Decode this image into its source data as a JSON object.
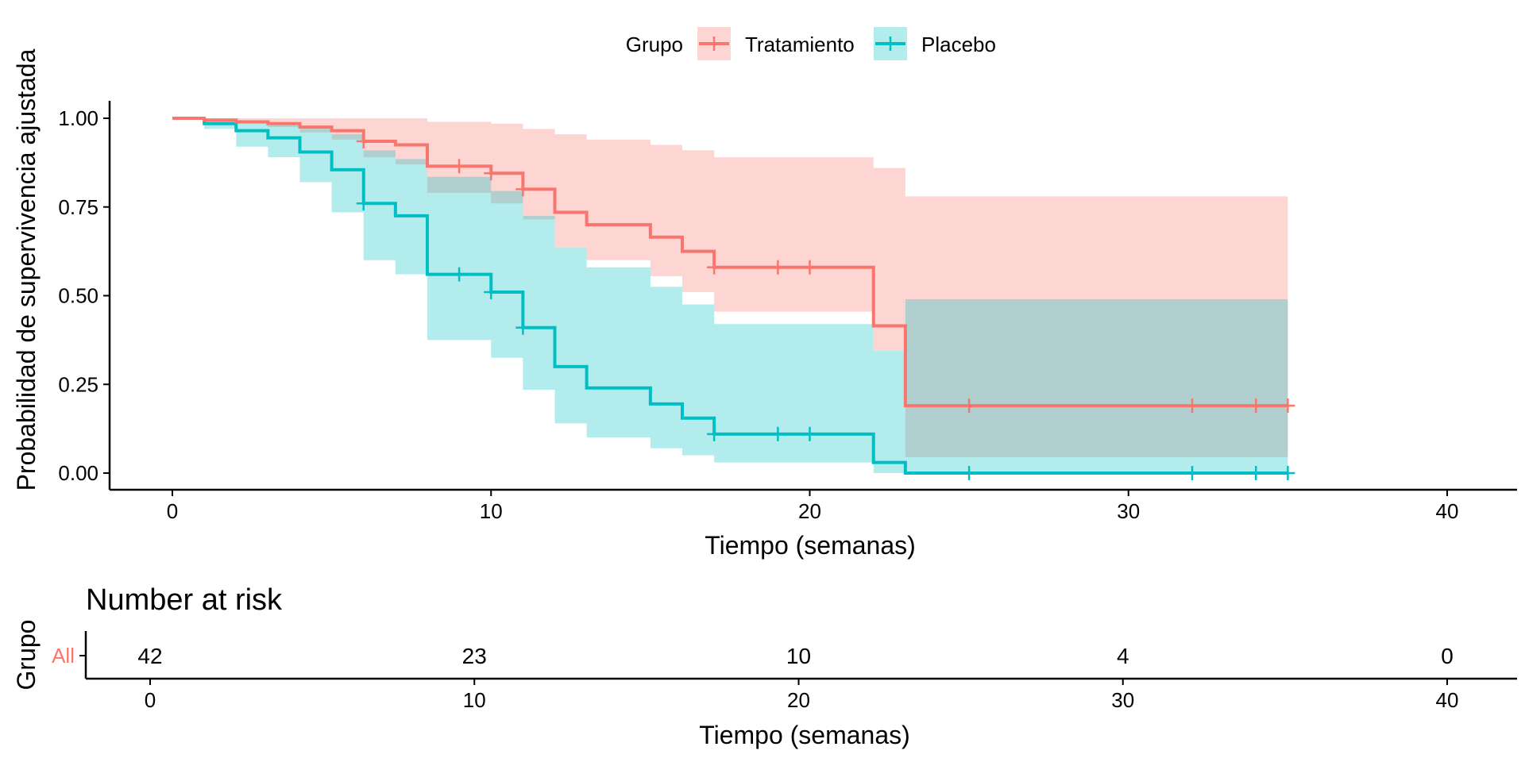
{
  "colors": {
    "treatment": "#F8766D",
    "placebo": "#00BFC4",
    "treatment_band": "#F8766D",
    "placebo_band": "#00BFC4",
    "axis": "#000000"
  },
  "legend": {
    "title": "Grupo",
    "items": [
      "Tratamiento",
      "Placebo"
    ]
  },
  "chart_data": [
    {
      "type": "line",
      "subtype": "kaplan-meier-step",
      "ylabel": "Probabilidad de supervivencia ajustada",
      "xlabel": "Tiempo (semanas)",
      "xlim": [
        -2,
        42
      ],
      "ylim": [
        -0.05,
        1.05
      ],
      "xticks": [
        0,
        10,
        20,
        30,
        40
      ],
      "yticks": [
        0.0,
        0.25,
        0.5,
        0.75,
        1.0
      ],
      "ytick_labels": [
        "0.00",
        "0.25",
        "0.50",
        "0.75",
        "1.00"
      ],
      "legend_position": "top",
      "series": [
        {
          "name": "Tratamiento",
          "color": "#F8766D",
          "steps": [
            [
              0,
              1.0
            ],
            [
              1,
              0.995
            ],
            [
              2,
              0.99
            ],
            [
              3,
              0.985
            ],
            [
              4,
              0.975
            ],
            [
              5,
              0.965
            ],
            [
              6,
              0.935
            ],
            [
              7,
              0.925
            ],
            [
              8,
              0.865
            ],
            [
              10,
              0.845
            ],
            [
              11,
              0.8
            ],
            [
              12,
              0.735
            ],
            [
              13,
              0.7
            ],
            [
              15,
              0.665
            ],
            [
              16,
              0.625
            ],
            [
              17,
              0.58
            ],
            [
              22,
              0.415
            ],
            [
              23,
              0.19
            ],
            [
              35,
              0.19
            ]
          ],
          "upper": [
            [
              1,
              1.0
            ],
            [
              6,
              1.0
            ],
            [
              8,
              0.99
            ],
            [
              10,
              0.985
            ],
            [
              11,
              0.97
            ],
            [
              12,
              0.955
            ],
            [
              13,
              0.94
            ],
            [
              15,
              0.925
            ],
            [
              16,
              0.91
            ],
            [
              17,
              0.89
            ],
            [
              22,
              0.86
            ],
            [
              23,
              0.78
            ],
            [
              35,
              0.78
            ]
          ],
          "lower": [
            [
              1,
              0.99
            ],
            [
              2,
              0.985
            ],
            [
              3,
              0.975
            ],
            [
              4,
              0.96
            ],
            [
              5,
              0.94
            ],
            [
              6,
              0.89
            ],
            [
              7,
              0.87
            ],
            [
              8,
              0.79
            ],
            [
              10,
              0.76
            ],
            [
              11,
              0.715
            ],
            [
              12,
              0.635
            ],
            [
              13,
              0.6
            ],
            [
              15,
              0.555
            ],
            [
              16,
              0.51
            ],
            [
              17,
              0.455
            ],
            [
              22,
              0.345
            ],
            [
              23,
              0.045
            ],
            [
              35,
              0.045
            ]
          ],
          "censor_x": [
            6,
            9,
            10,
            11,
            17,
            19,
            20,
            25,
            32,
            34,
            35
          ]
        },
        {
          "name": "Placebo",
          "color": "#00BFC4",
          "steps": [
            [
              0,
              1.0
            ],
            [
              1,
              0.985
            ],
            [
              2,
              0.965
            ],
            [
              3,
              0.945
            ],
            [
              4,
              0.905
            ],
            [
              5,
              0.855
            ],
            [
              6,
              0.76
            ],
            [
              7,
              0.725
            ],
            [
              8,
              0.56
            ],
            [
              10,
              0.51
            ],
            [
              11,
              0.41
            ],
            [
              12,
              0.3
            ],
            [
              13,
              0.24
            ],
            [
              15,
              0.195
            ],
            [
              16,
              0.155
            ],
            [
              17,
              0.11
            ],
            [
              22,
              0.03
            ],
            [
              23,
              0.0
            ],
            [
              35,
              0.0
            ]
          ],
          "upper": [
            [
              1,
              0.995
            ],
            [
              2,
              0.99
            ],
            [
              3,
              0.98
            ],
            [
              4,
              0.97
            ],
            [
              5,
              0.955
            ],
            [
              6,
              0.91
            ],
            [
              7,
              0.885
            ],
            [
              8,
              0.835
            ],
            [
              10,
              0.795
            ],
            [
              11,
              0.725
            ],
            [
              12,
              0.635
            ],
            [
              13,
              0.58
            ],
            [
              15,
              0.525
            ],
            [
              16,
              0.475
            ],
            [
              17,
              0.42
            ],
            [
              22,
              0.345
            ],
            [
              23,
              0.49
            ],
            [
              35,
              0.49
            ]
          ],
          "lower": [
            [
              1,
              0.97
            ],
            [
              2,
              0.92
            ],
            [
              3,
              0.89
            ],
            [
              4,
              0.82
            ],
            [
              5,
              0.735
            ],
            [
              6,
              0.6
            ],
            [
              7,
              0.56
            ],
            [
              8,
              0.375
            ],
            [
              10,
              0.325
            ],
            [
              11,
              0.235
            ],
            [
              12,
              0.14
            ],
            [
              13,
              0.1
            ],
            [
              15,
              0.07
            ],
            [
              16,
              0.05
            ],
            [
              17,
              0.03
            ],
            [
              22,
              0.0
            ],
            [
              23,
              0.0
            ],
            [
              35,
              0.0
            ]
          ],
          "censor_x": [
            6,
            9,
            10,
            11,
            17,
            19,
            20,
            25,
            32,
            34,
            35
          ]
        }
      ]
    },
    {
      "type": "table",
      "title": "Number at risk",
      "ylabel": "Grupo",
      "xlabel": "Tiempo (semanas)",
      "row_label": "All",
      "x": [
        0,
        10,
        20,
        30,
        40
      ],
      "values": [
        "42",
        "23",
        "10",
        "4",
        "0"
      ],
      "xticks": [
        0,
        10,
        20,
        30,
        40
      ]
    }
  ]
}
